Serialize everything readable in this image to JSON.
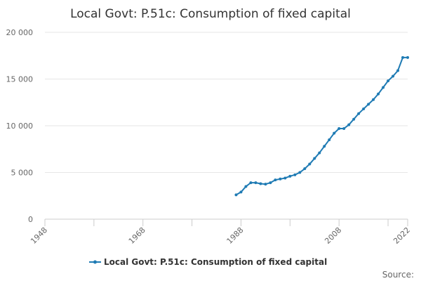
{
  "chart_data": {
    "type": "line",
    "title": "Local Govt: P.51c: Consumption of fixed capital",
    "xlabel": "",
    "ylabel": "",
    "xlim": [
      1948,
      2022
    ],
    "ylim": [
      0,
      20000
    ],
    "x_ticks": [
      1948,
      1968,
      1988,
      2008,
      2022
    ],
    "x_tick_labels": [
      "1948",
      "1968",
      "1988",
      "2008",
      "2022"
    ],
    "y_ticks": [
      0,
      5000,
      10000,
      15000,
      20000
    ],
    "y_tick_labels": [
      "0",
      "5 000",
      "10 000",
      "15 000",
      "20 000"
    ],
    "grid": true,
    "legend_position": "bottom",
    "series": [
      {
        "name": "Local Govt: P.51c: Consumption of fixed capital",
        "color": "#1f7bb4",
        "x": [
          1987,
          1988,
          1989,
          1990,
          1991,
          1992,
          1993,
          1994,
          1995,
          1996,
          1997,
          1998,
          1999,
          2000,
          2001,
          2002,
          2003,
          2004,
          2005,
          2006,
          2007,
          2008,
          2009,
          2010,
          2011,
          2012,
          2013,
          2014,
          2015,
          2016,
          2017,
          2018,
          2019,
          2020,
          2021,
          2022
        ],
        "y": [
          2600,
          2900,
          3500,
          3900,
          3900,
          3800,
          3750,
          3900,
          4200,
          4300,
          4400,
          4600,
          4750,
          5000,
          5400,
          5900,
          6500,
          7100,
          7800,
          8500,
          9200,
          9700,
          9700,
          10100,
          10700,
          11300,
          11800,
          12300,
          12800,
          13400,
          14100,
          14800,
          15300,
          15900,
          17300,
          17300
        ]
      }
    ]
  },
  "legend": {
    "label": "Local Govt: P.51c: Consumption of fixed capital"
  },
  "source_label": "Source:"
}
